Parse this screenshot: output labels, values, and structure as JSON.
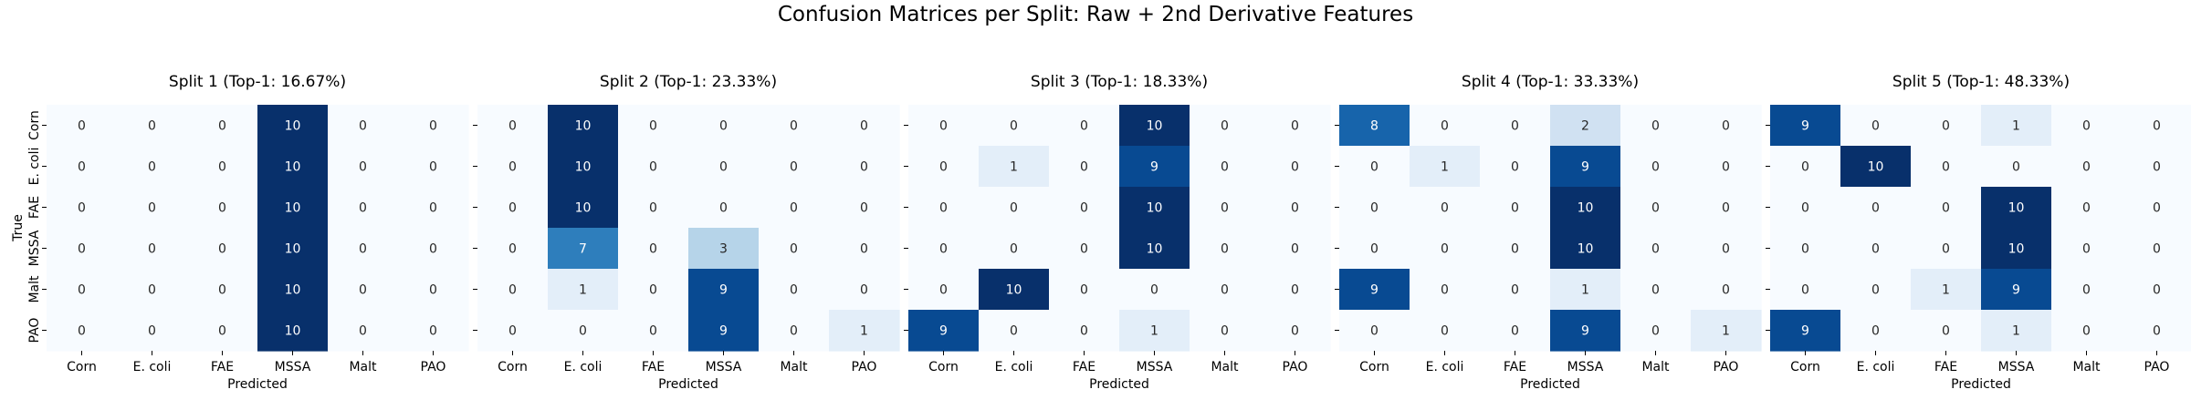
{
  "chart_data": {
    "type": "heatmap",
    "title": "Confusion Matrices per Split: Raw + 2nd Derivative Features",
    "colormap": "Blues",
    "ylabel": "True",
    "xlabel": "Predicted",
    "classes": [
      "Corn",
      "E. coli",
      "FAE",
      "MSSA",
      "Malt",
      "PAO"
    ],
    "color_range": [
      0,
      10
    ],
    "panels": [
      {
        "title": "Split 1 (Top-1: 16.67%)",
        "matrix": [
          [
            0,
            0,
            0,
            10,
            0,
            0
          ],
          [
            0,
            0,
            0,
            10,
            0,
            0
          ],
          [
            0,
            0,
            0,
            10,
            0,
            0
          ],
          [
            0,
            0,
            0,
            10,
            0,
            0
          ],
          [
            0,
            0,
            0,
            10,
            0,
            0
          ],
          [
            0,
            0,
            0,
            10,
            0,
            0
          ]
        ]
      },
      {
        "title": "Split 2 (Top-1: 23.33%)",
        "matrix": [
          [
            0,
            10,
            0,
            0,
            0,
            0
          ],
          [
            0,
            10,
            0,
            0,
            0,
            0
          ],
          [
            0,
            10,
            0,
            0,
            0,
            0
          ],
          [
            0,
            7,
            0,
            3,
            0,
            0
          ],
          [
            0,
            1,
            0,
            9,
            0,
            0
          ],
          [
            0,
            0,
            0,
            9,
            0,
            1
          ]
        ]
      },
      {
        "title": "Split 3 (Top-1: 18.33%)",
        "matrix": [
          [
            0,
            0,
            0,
            10,
            0,
            0
          ],
          [
            0,
            1,
            0,
            9,
            0,
            0
          ],
          [
            0,
            0,
            0,
            10,
            0,
            0
          ],
          [
            0,
            0,
            0,
            10,
            0,
            0
          ],
          [
            0,
            10,
            0,
            0,
            0,
            0
          ],
          [
            9,
            0,
            0,
            1,
            0,
            0
          ]
        ]
      },
      {
        "title": "Split 4 (Top-1: 33.33%)",
        "matrix": [
          [
            8,
            0,
            0,
            2,
            0,
            0
          ],
          [
            0,
            1,
            0,
            9,
            0,
            0
          ],
          [
            0,
            0,
            0,
            10,
            0,
            0
          ],
          [
            0,
            0,
            0,
            10,
            0,
            0
          ],
          [
            9,
            0,
            0,
            1,
            0,
            0
          ],
          [
            0,
            0,
            0,
            9,
            0,
            1
          ]
        ]
      },
      {
        "title": "Split 5 (Top-1: 48.33%)",
        "matrix": [
          [
            9,
            0,
            0,
            1,
            0,
            0
          ],
          [
            0,
            10,
            0,
            0,
            0,
            0
          ],
          [
            0,
            0,
            0,
            10,
            0,
            0
          ],
          [
            0,
            0,
            0,
            10,
            0,
            0
          ],
          [
            0,
            0,
            1,
            9,
            0,
            0
          ],
          [
            9,
            0,
            0,
            1,
            0,
            0
          ]
        ]
      }
    ]
  }
}
